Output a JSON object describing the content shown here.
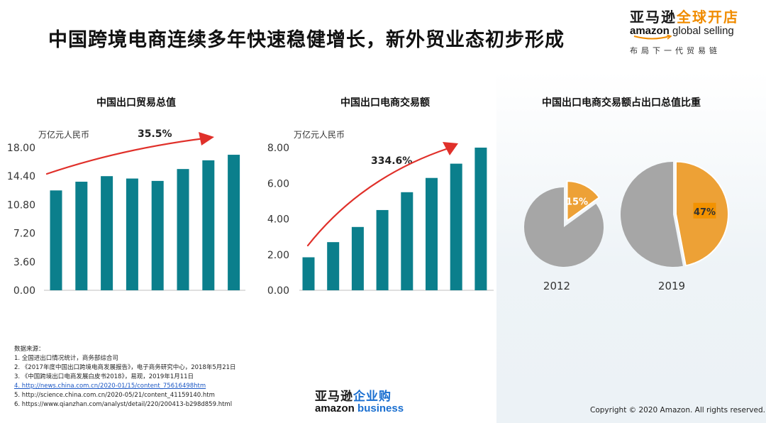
{
  "header": {
    "title": "中国跨境电商连续多年快速稳健增长，新外贸业态初步形成"
  },
  "brand": {
    "cn_part1": "亚马逊",
    "cn_part2": "全球开店",
    "en_part1": "amazon",
    "en_part2": " global selling",
    "tagline": "布局下一代贸易链",
    "accent_color": "#f08c00"
  },
  "colors": {
    "bar": "#0b7f8c",
    "arrow": "#e0302a",
    "pie_gray": "#a6a6a6",
    "pie_orange": "#eda136",
    "label_box": "#f39200"
  },
  "chart_data": [
    {
      "type": "bar",
      "title": "中国出口贸易总值",
      "unit_label": "万亿元人民币",
      "growth_label": "35.5%",
      "yticks": [
        "0.00",
        "3.60",
        "7.20",
        "10.80",
        "14.40",
        "18.00"
      ],
      "ylim": [
        0,
        18
      ],
      "categories": [
        "",
        "",
        "",
        "",
        "",
        "",
        "",
        ""
      ],
      "values": [
        12.6,
        13.7,
        14.4,
        14.1,
        13.8,
        15.3,
        16.4,
        17.1
      ]
    },
    {
      "type": "bar",
      "title": "中国出口电商交易额",
      "unit_label": "万亿元人民币",
      "growth_label": "334.6%",
      "yticks": [
        "0.00",
        "2.00",
        "4.00",
        "6.00",
        "8.00"
      ],
      "ylim": [
        0,
        8
      ],
      "categories": [
        "",
        "",
        "",
        "",
        "",
        "",
        "",
        ""
      ],
      "values": [
        1.85,
        2.7,
        3.55,
        4.5,
        5.5,
        6.3,
        7.1,
        8.0
      ]
    },
    {
      "type": "pie",
      "title": "中国出口电商交易额占出口总值比重",
      "pies": [
        {
          "year": "2012",
          "highlight_value": 15,
          "highlight_label": "15%",
          "rest_value": 85
        },
        {
          "year": "2019",
          "highlight_value": 47,
          "highlight_label": "47%",
          "rest_value": 53
        }
      ]
    }
  ],
  "sources": {
    "heading": "数据来源：",
    "items": [
      "1. 全国进出口情况统计，商务部综合司",
      "2. 《2017年度中国出口跨境电商发展报告》，电子商务研究中心，2018年5月21日",
      "3. 《中国跨境出口电商发展白皮书2018》，易观，2019年1月11日",
      "4. http://news.china.com.cn/2020-01/15/content_75616498htm",
      "5. http://science.china.com.cn/2020-05/21/content_41159140.htm",
      "6. https://www.qianzhan.com/analyst/detail/220/200413-b298d859.html"
    ]
  },
  "business_brand": {
    "cn_part1": "亚马逊",
    "cn_part2": "企业购",
    "en_part1": "amazon",
    "en_part2": "business"
  },
  "footer": {
    "copyright": "Copyright © 2020 Amazon. All rights reserved."
  }
}
